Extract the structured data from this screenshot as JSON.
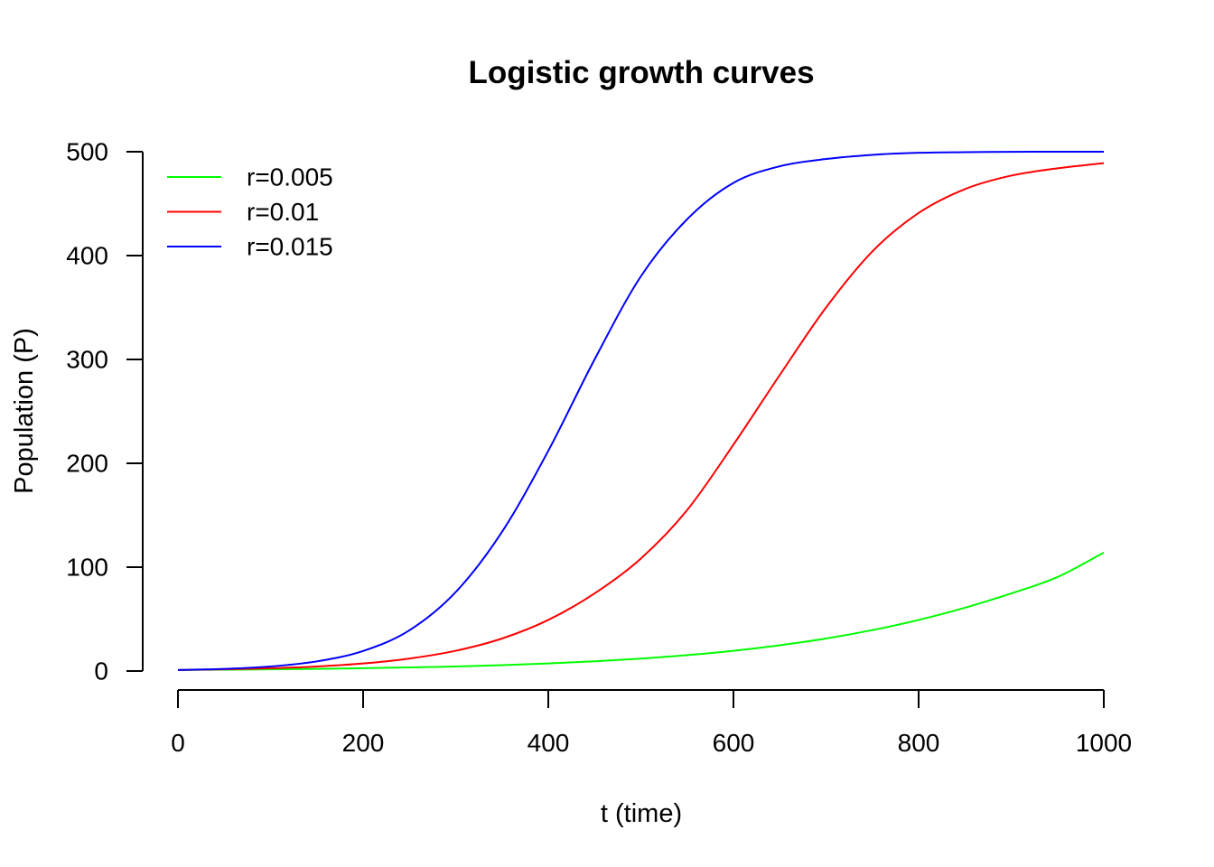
{
  "chart_data": {
    "type": "line",
    "title": "Logistic growth curves",
    "xlabel": "t (time)",
    "ylabel": "Population (P)",
    "xlim": [
      0,
      1000
    ],
    "ylim": [
      0,
      500
    ],
    "xticks": [
      "0",
      "200",
      "400",
      "600",
      "800",
      "1000"
    ],
    "yticks": [
      "0",
      "100",
      "200",
      "300",
      "400",
      "500"
    ],
    "grid": false,
    "legend_position": "top-left",
    "x": [
      0,
      50,
      100,
      150,
      200,
      250,
      300,
      350,
      400,
      450,
      500,
      550,
      600,
      650,
      700,
      750,
      800,
      850,
      900,
      950,
      1000
    ],
    "series": [
      {
        "name": "r=0.005",
        "color": "#00ff00",
        "values": [
          1.0,
          1.3,
          1.6,
          2.1,
          2.7,
          3.5,
          4.4,
          5.7,
          7.3,
          9.4,
          12.0,
          15.3,
          19.5,
          24.8,
          31.3,
          39.4,
          49.2,
          60.9,
          74.7,
          90.5,
          114.0
        ]
      },
      {
        "name": "r=0.01",
        "color": "#ff0000",
        "values": [
          1.0,
          1.6,
          2.7,
          4.4,
          7.3,
          12.0,
          19.5,
          31.3,
          49.2,
          74.7,
          108.3,
          155.0,
          218.0,
          285.0,
          350.0,
          404.0,
          441.0,
          464.0,
          477.0,
          484.0,
          489.0
        ]
      },
      {
        "name": "r=0.015",
        "color": "#0000ff",
        "values": [
          1.0,
          2.1,
          4.4,
          9.3,
          19.3,
          39.2,
          76.0,
          134.0,
          212.0,
          300.0,
          380.0,
          435.0,
          470.0,
          486.0,
          493.0,
          497.0,
          499.0,
          499.6,
          499.9,
          500.0,
          500.0
        ]
      }
    ]
  }
}
